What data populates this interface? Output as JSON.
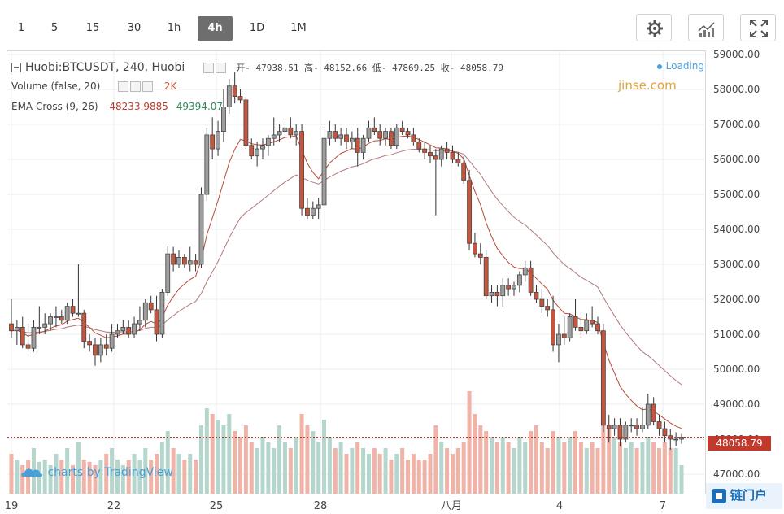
{
  "toolbar": {
    "intervals": [
      "1",
      "5",
      "15",
      "30",
      "1h",
      "4h",
      "1D",
      "1M"
    ],
    "active_interval": "4h",
    "buttons": [
      "gear-icon",
      "indicators-icon",
      "fullscreen-icon"
    ]
  },
  "legend": {
    "symbol": "Huobi:BTCUSDT, 240, Huobi",
    "ohlc": "开- 47938.51 高- 48152.66 低- 47869.25 收- 48058.79",
    "volume_label": "Volume (false, 20)",
    "volume_value": "2K",
    "ema_label": "EMA Cross (9, 26)",
    "ema_fast": "48233.9885",
    "ema_slow": "49394.07",
    "loading": "Loading"
  },
  "watermark": "jinse.com",
  "tv_logo": "charts by TradingView",
  "brand": "链门户",
  "last_price": "48058.79",
  "colors": {
    "up": "#9e9e9e",
    "up_border": "#444444",
    "down": "#c5553d",
    "ema_fast": "#b94a3a",
    "ema_slow": "#b07a7a",
    "vol_up": "#b5d6cc",
    "vol_down": "#f0b3a8",
    "last_price": "#c0392b"
  },
  "chart_data": {
    "type": "candlestick",
    "y_axis": {
      "min": 47000,
      "max": 59000,
      "step": 1000,
      "position": "right",
      "tick_labels": [
        "47000.00",
        "48000.00",
        "49000.00",
        "50000.00",
        "51000.00",
        "52000.00",
        "53000.00",
        "54000.00",
        "55000.00",
        "56000.00",
        "57000.00",
        "58000.00",
        "59000.00"
      ]
    },
    "x_axis": {
      "tick_labels": [
        "19",
        "22",
        "25",
        "28",
        "八月",
        "4",
        "7"
      ]
    },
    "grid": true,
    "candles": [
      {
        "o": 51300,
        "h": 52000,
        "l": 50900,
        "c": 51100
      },
      {
        "o": 51100,
        "h": 51400,
        "l": 50700,
        "c": 51200
      },
      {
        "o": 51200,
        "h": 51500,
        "l": 50600,
        "c": 50700
      },
      {
        "o": 50700,
        "h": 51300,
        "l": 50500,
        "c": 50600
      },
      {
        "o": 50600,
        "h": 51400,
        "l": 50500,
        "c": 51200
      },
      {
        "o": 51200,
        "h": 51800,
        "l": 51000,
        "c": 51200
      },
      {
        "o": 51200,
        "h": 51600,
        "l": 51000,
        "c": 51300
      },
      {
        "o": 51300,
        "h": 51600,
        "l": 51100,
        "c": 51500
      },
      {
        "o": 51500,
        "h": 51800,
        "l": 51200,
        "c": 51500
      },
      {
        "o": 51500,
        "h": 51700,
        "l": 51300,
        "c": 51400
      },
      {
        "o": 51400,
        "h": 51900,
        "l": 51300,
        "c": 51800
      },
      {
        "o": 51800,
        "h": 52000,
        "l": 51500,
        "c": 51600
      },
      {
        "o": 51600,
        "h": 53000,
        "l": 51500,
        "c": 51600
      },
      {
        "o": 51600,
        "h": 51700,
        "l": 50600,
        "c": 50800
      },
      {
        "o": 50800,
        "h": 51000,
        "l": 50500,
        "c": 50700
      },
      {
        "o": 50700,
        "h": 50900,
        "l": 50100,
        "c": 50400
      },
      {
        "o": 50400,
        "h": 50900,
        "l": 50200,
        "c": 50700
      },
      {
        "o": 50700,
        "h": 51000,
        "l": 50400,
        "c": 50600
      },
      {
        "o": 50600,
        "h": 51300,
        "l": 50500,
        "c": 51000
      },
      {
        "o": 51000,
        "h": 51300,
        "l": 50900,
        "c": 51100
      },
      {
        "o": 51100,
        "h": 51400,
        "l": 51000,
        "c": 51200
      },
      {
        "o": 51200,
        "h": 51400,
        "l": 50900,
        "c": 51000
      },
      {
        "o": 51000,
        "h": 51500,
        "l": 50900,
        "c": 51300
      },
      {
        "o": 51300,
        "h": 51800,
        "l": 51100,
        "c": 51400
      },
      {
        "o": 51400,
        "h": 52000,
        "l": 51200,
        "c": 51900
      },
      {
        "o": 51900,
        "h": 52100,
        "l": 51600,
        "c": 51700
      },
      {
        "o": 51700,
        "h": 52100,
        "l": 50800,
        "c": 51000
      },
      {
        "o": 51000,
        "h": 52300,
        "l": 50900,
        "c": 52200
      },
      {
        "o": 52200,
        "h": 53500,
        "l": 52100,
        "c": 53300
      },
      {
        "o": 53300,
        "h": 53500,
        "l": 52800,
        "c": 53000
      },
      {
        "o": 53000,
        "h": 53400,
        "l": 52900,
        "c": 53200
      },
      {
        "o": 53200,
        "h": 53300,
        "l": 52900,
        "c": 53000
      },
      {
        "o": 53000,
        "h": 53500,
        "l": 52800,
        "c": 53100
      },
      {
        "o": 53100,
        "h": 53300,
        "l": 52800,
        "c": 53000
      },
      {
        "o": 53000,
        "h": 55200,
        "l": 52900,
        "c": 55000
      },
      {
        "o": 55000,
        "h": 56900,
        "l": 54800,
        "c": 56700
      },
      {
        "o": 56700,
        "h": 57200,
        "l": 56000,
        "c": 56300
      },
      {
        "o": 56300,
        "h": 57100,
        "l": 56100,
        "c": 56800
      },
      {
        "o": 56800,
        "h": 58000,
        "l": 56500,
        "c": 57500
      },
      {
        "o": 57500,
        "h": 58300,
        "l": 57300,
        "c": 58100
      },
      {
        "o": 58100,
        "h": 58500,
        "l": 57600,
        "c": 57800
      },
      {
        "o": 57800,
        "h": 58000,
        "l": 57600,
        "c": 57700
      },
      {
        "o": 57700,
        "h": 57800,
        "l": 56300,
        "c": 56400
      },
      {
        "o": 56400,
        "h": 56600,
        "l": 56000,
        "c": 56100
      },
      {
        "o": 56100,
        "h": 56500,
        "l": 55800,
        "c": 56300
      },
      {
        "o": 56300,
        "h": 56600,
        "l": 56000,
        "c": 56400
      },
      {
        "o": 56400,
        "h": 56700,
        "l": 56100,
        "c": 56600
      },
      {
        "o": 56600,
        "h": 57200,
        "l": 56400,
        "c": 56700
      },
      {
        "o": 56700,
        "h": 57000,
        "l": 56500,
        "c": 56800
      },
      {
        "o": 56800,
        "h": 57100,
        "l": 56600,
        "c": 56900
      },
      {
        "o": 56900,
        "h": 57200,
        "l": 56600,
        "c": 56700
      },
      {
        "o": 56700,
        "h": 57000,
        "l": 56400,
        "c": 56800
      },
      {
        "o": 56800,
        "h": 57000,
        "l": 54400,
        "c": 54600
      },
      {
        "o": 54600,
        "h": 54900,
        "l": 54300,
        "c": 54400
      },
      {
        "o": 54400,
        "h": 54800,
        "l": 54300,
        "c": 54600
      },
      {
        "o": 54600,
        "h": 54900,
        "l": 54300,
        "c": 54700
      },
      {
        "o": 54700,
        "h": 57000,
        "l": 53900,
        "c": 56600
      },
      {
        "o": 56600,
        "h": 57100,
        "l": 56400,
        "c": 56800
      },
      {
        "o": 56800,
        "h": 57000,
        "l": 56500,
        "c": 56600
      },
      {
        "o": 56600,
        "h": 56900,
        "l": 56400,
        "c": 56700
      },
      {
        "o": 56700,
        "h": 56900,
        "l": 56300,
        "c": 56500
      },
      {
        "o": 56500,
        "h": 56800,
        "l": 56300,
        "c": 56600
      },
      {
        "o": 56600,
        "h": 56900,
        "l": 55800,
        "c": 56200
      },
      {
        "o": 56200,
        "h": 56700,
        "l": 56000,
        "c": 56600
      },
      {
        "o": 56600,
        "h": 57100,
        "l": 56500,
        "c": 56900
      },
      {
        "o": 56900,
        "h": 57200,
        "l": 56700,
        "c": 56800
      },
      {
        "o": 56800,
        "h": 57000,
        "l": 56400,
        "c": 56600
      },
      {
        "o": 56600,
        "h": 56900,
        "l": 56400,
        "c": 56800
      },
      {
        "o": 56800,
        "h": 56900,
        "l": 56300,
        "c": 56400
      },
      {
        "o": 56400,
        "h": 57000,
        "l": 56300,
        "c": 56900
      },
      {
        "o": 56900,
        "h": 57100,
        "l": 56700,
        "c": 56800
      },
      {
        "o": 56800,
        "h": 56900,
        "l": 56600,
        "c": 56700
      },
      {
        "o": 56700,
        "h": 56900,
        "l": 56400,
        "c": 56500
      },
      {
        "o": 56500,
        "h": 56600,
        "l": 56200,
        "c": 56300
      },
      {
        "o": 56300,
        "h": 56500,
        "l": 56000,
        "c": 56200
      },
      {
        "o": 56200,
        "h": 56400,
        "l": 55900,
        "c": 56100
      },
      {
        "o": 56100,
        "h": 56300,
        "l": 54400,
        "c": 56000
      },
      {
        "o": 56000,
        "h": 56400,
        "l": 55800,
        "c": 56300
      },
      {
        "o": 56300,
        "h": 56500,
        "l": 56000,
        "c": 56200
      },
      {
        "o": 56200,
        "h": 56400,
        "l": 55900,
        "c": 56000
      },
      {
        "o": 56000,
        "h": 56200,
        "l": 55800,
        "c": 55900
      },
      {
        "o": 55900,
        "h": 56100,
        "l": 55300,
        "c": 55400
      },
      {
        "o": 55400,
        "h": 55700,
        "l": 53400,
        "c": 53600
      },
      {
        "o": 53600,
        "h": 53900,
        "l": 53200,
        "c": 53300
      },
      {
        "o": 53300,
        "h": 53600,
        "l": 53000,
        "c": 53200
      },
      {
        "o": 53200,
        "h": 53400,
        "l": 52000,
        "c": 52100
      },
      {
        "o": 52100,
        "h": 52400,
        "l": 51900,
        "c": 52200
      },
      {
        "o": 52200,
        "h": 52400,
        "l": 51800,
        "c": 52100
      },
      {
        "o": 52100,
        "h": 52600,
        "l": 51800,
        "c": 52400
      },
      {
        "o": 52400,
        "h": 52600,
        "l": 52100,
        "c": 52300
      },
      {
        "o": 52300,
        "h": 52500,
        "l": 52100,
        "c": 52400
      },
      {
        "o": 52400,
        "h": 52800,
        "l": 52200,
        "c": 52700
      },
      {
        "o": 52700,
        "h": 53100,
        "l": 52500,
        "c": 52900
      },
      {
        "o": 52900,
        "h": 53100,
        "l": 52100,
        "c": 52200
      },
      {
        "o": 52200,
        "h": 52400,
        "l": 51900,
        "c": 52000
      },
      {
        "o": 52000,
        "h": 52300,
        "l": 51600,
        "c": 51800
      },
      {
        "o": 51800,
        "h": 52000,
        "l": 51500,
        "c": 51700
      },
      {
        "o": 51700,
        "h": 52100,
        "l": 50500,
        "c": 50700
      },
      {
        "o": 50700,
        "h": 51300,
        "l": 50200,
        "c": 51000
      },
      {
        "o": 51000,
        "h": 51500,
        "l": 50700,
        "c": 50900
      },
      {
        "o": 50900,
        "h": 51600,
        "l": 50800,
        "c": 51500
      },
      {
        "o": 51500,
        "h": 52000,
        "l": 51100,
        "c": 51200
      },
      {
        "o": 51200,
        "h": 51500,
        "l": 50900,
        "c": 51100
      },
      {
        "o": 51100,
        "h": 51600,
        "l": 51000,
        "c": 51400
      },
      {
        "o": 51400,
        "h": 51800,
        "l": 51200,
        "c": 51300
      },
      {
        "o": 51300,
        "h": 51500,
        "l": 51000,
        "c": 51100
      },
      {
        "o": 51100,
        "h": 51300,
        "l": 48200,
        "c": 48400
      },
      {
        "o": 48400,
        "h": 48700,
        "l": 47900,
        "c": 48300
      },
      {
        "o": 48300,
        "h": 48600,
        "l": 48100,
        "c": 48400
      },
      {
        "o": 48400,
        "h": 48600,
        "l": 47800,
        "c": 48000
      },
      {
        "o": 48000,
        "h": 48500,
        "l": 47900,
        "c": 48400
      },
      {
        "o": 48400,
        "h": 48600,
        "l": 48200,
        "c": 48400
      },
      {
        "o": 48400,
        "h": 48600,
        "l": 48100,
        "c": 48300
      },
      {
        "o": 48300,
        "h": 48900,
        "l": 48200,
        "c": 48400
      },
      {
        "o": 48400,
        "h": 49300,
        "l": 48300,
        "c": 49000
      },
      {
        "o": 49000,
        "h": 49200,
        "l": 48400,
        "c": 48500
      },
      {
        "o": 48500,
        "h": 48700,
        "l": 48100,
        "c": 48300
      },
      {
        "o": 48300,
        "h": 48500,
        "l": 47900,
        "c": 48100
      },
      {
        "o": 48100,
        "h": 48300,
        "l": 47700,
        "c": 48000
      },
      {
        "o": 48000,
        "h": 48200,
        "l": 47800,
        "c": 48000
      },
      {
        "o": 48000,
        "h": 48150,
        "l": 47870,
        "c": 48060
      }
    ],
    "volume": [
      0.35,
      0.3,
      0.25,
      0.3,
      0.4,
      0.28,
      0.3,
      0.25,
      0.35,
      0.3,
      0.4,
      0.25,
      0.45,
      0.3,
      0.28,
      0.25,
      0.3,
      0.35,
      0.4,
      0.3,
      0.25,
      0.3,
      0.35,
      0.3,
      0.4,
      0.3,
      0.35,
      0.45,
      0.55,
      0.4,
      0.35,
      0.3,
      0.35,
      0.3,
      0.6,
      0.75,
      0.7,
      0.65,
      0.6,
      0.7,
      0.55,
      0.5,
      0.6,
      0.45,
      0.4,
      0.5,
      0.45,
      0.4,
      0.6,
      0.45,
      0.4,
      0.5,
      0.7,
      0.6,
      0.55,
      0.45,
      0.65,
      0.5,
      0.4,
      0.45,
      0.35,
      0.4,
      0.45,
      0.4,
      0.35,
      0.4,
      0.35,
      0.4,
      0.3,
      0.35,
      0.4,
      0.3,
      0.35,
      0.3,
      0.3,
      0.35,
      0.6,
      0.45,
      0.4,
      0.35,
      0.4,
      0.45,
      0.9,
      0.7,
      0.6,
      0.55,
      0.5,
      0.45,
      0.5,
      0.45,
      0.4,
      0.5,
      0.45,
      0.55,
      0.6,
      0.45,
      0.4,
      0.55,
      0.5,
      0.45,
      0.5,
      0.55,
      0.45,
      0.4,
      0.45,
      0.4,
      0.75,
      0.6,
      0.5,
      0.45,
      0.4,
      0.45,
      0.4,
      0.45,
      0.5,
      0.45,
      0.4,
      0.45,
      0.4,
      0.4,
      0.25
    ]
  }
}
